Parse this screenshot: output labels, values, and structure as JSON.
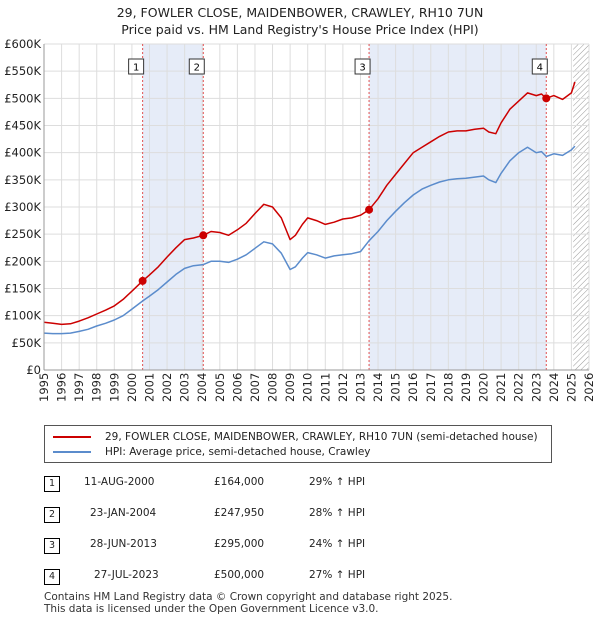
{
  "title": {
    "line1": "29, FOWLER CLOSE, MAIDENBOWER, CRAWLEY, RH10 7UN",
    "line2": "Price paid vs. HM Land Registry's House Price Index (HPI)"
  },
  "colors": {
    "property": "#cc0000",
    "hpi": "#5b8ccc",
    "band": "#e6ecf8",
    "marker_line": "#e05050",
    "grid": "#dddddd",
    "forecast_hatch": "#999999"
  },
  "chart_data": {
    "type": "line",
    "title": "Price paid vs. HM Land Registry's House Price Index (HPI)",
    "xlabel": "",
    "ylabel": "",
    "xlim": [
      1995,
      2026
    ],
    "ylim": [
      0,
      600000
    ],
    "grid": true,
    "x_ticks": [
      "1995",
      "1996",
      "1997",
      "1998",
      "1999",
      "2000",
      "2001",
      "2002",
      "2003",
      "2004",
      "2005",
      "2006",
      "2007",
      "2008",
      "2009",
      "2010",
      "2011",
      "2012",
      "2013",
      "2014",
      "2015",
      "2016",
      "2017",
      "2018",
      "2019",
      "2020",
      "2021",
      "2022",
      "2023",
      "2024",
      "2025",
      "2026"
    ],
    "y_ticks": [
      {
        "value": 0,
        "label": "£0"
      },
      {
        "value": 50000,
        "label": "£50K"
      },
      {
        "value": 100000,
        "label": "£100K"
      },
      {
        "value": 150000,
        "label": "£150K"
      },
      {
        "value": 200000,
        "label": "£200K"
      },
      {
        "value": 250000,
        "label": "£250K"
      },
      {
        "value": 300000,
        "label": "£300K"
      },
      {
        "value": 350000,
        "label": "£350K"
      },
      {
        "value": 400000,
        "label": "£400K"
      },
      {
        "value": 450000,
        "label": "£450K"
      },
      {
        "value": 500000,
        "label": "£500K"
      },
      {
        "value": 550000,
        "label": "£550K"
      },
      {
        "value": 600000,
        "label": "£600K"
      }
    ],
    "shaded_periods": [
      [
        2000.61,
        2004.06
      ],
      [
        2013.49,
        2023.57
      ]
    ],
    "forecast_from": 2025.1,
    "series": [
      {
        "name": "29, FOWLER CLOSE, MAIDENBOWER, CRAWLEY, RH10 7UN (semi-detached house)",
        "color": "#cc0000",
        "x": [
          1995.0,
          1995.5,
          1996.0,
          1996.5,
          1997.0,
          1997.5,
          1998.0,
          1998.5,
          1999.0,
          1999.5,
          2000.0,
          2000.61,
          2001.0,
          2001.5,
          2002.0,
          2002.5,
          2003.0,
          2003.5,
          2004.06,
          2004.5,
          2005.0,
          2005.5,
          2006.0,
          2006.5,
          2007.0,
          2007.5,
          2008.0,
          2008.5,
          2009.0,
          2009.3,
          2009.7,
          2010.0,
          2010.5,
          2011.0,
          2011.5,
          2012.0,
          2012.5,
          2013.0,
          2013.49,
          2014.0,
          2014.5,
          2015.0,
          2015.5,
          2016.0,
          2016.5,
          2017.0,
          2017.5,
          2018.0,
          2018.5,
          2019.0,
          2019.5,
          2020.0,
          2020.3,
          2020.7,
          2021.0,
          2021.5,
          2022.0,
          2022.5,
          2023.0,
          2023.3,
          2023.57,
          2024.0,
          2024.5,
          2025.0,
          2025.2
        ],
        "values": [
          88000,
          86000,
          84000,
          85000,
          90000,
          96000,
          103000,
          110000,
          118000,
          130000,
          145000,
          164000,
          175000,
          190000,
          208000,
          225000,
          240000,
          243000,
          247950,
          255000,
          253000,
          248000,
          258000,
          270000,
          288000,
          305000,
          300000,
          280000,
          240000,
          248000,
          268000,
          280000,
          275000,
          268000,
          272000,
          278000,
          280000,
          285000,
          295000,
          315000,
          340000,
          360000,
          380000,
          400000,
          410000,
          420000,
          430000,
          438000,
          440000,
          440000,
          443000,
          445000,
          438000,
          435000,
          455000,
          480000,
          495000,
          510000,
          505000,
          508000,
          500000,
          505000,
          498000,
          510000,
          530000
        ]
      },
      {
        "name": "HPI: Average price, semi-detached house, Crawley",
        "color": "#5b8ccc",
        "x": [
          1995.0,
          1995.5,
          1996.0,
          1996.5,
          1997.0,
          1997.5,
          1998.0,
          1998.5,
          1999.0,
          1999.5,
          2000.0,
          2000.61,
          2001.0,
          2001.5,
          2002.0,
          2002.5,
          2003.0,
          2003.5,
          2004.06,
          2004.5,
          2005.0,
          2005.5,
          2006.0,
          2006.5,
          2007.0,
          2007.5,
          2008.0,
          2008.5,
          2009.0,
          2009.3,
          2009.7,
          2010.0,
          2010.5,
          2011.0,
          2011.5,
          2012.0,
          2012.5,
          2013.0,
          2013.49,
          2014.0,
          2014.5,
          2015.0,
          2015.5,
          2016.0,
          2016.5,
          2017.0,
          2017.5,
          2018.0,
          2018.5,
          2019.0,
          2019.5,
          2020.0,
          2020.3,
          2020.7,
          2021.0,
          2021.5,
          2022.0,
          2022.5,
          2023.0,
          2023.3,
          2023.57,
          2024.0,
          2024.5,
          2025.0,
          2025.2
        ],
        "values": [
          68000,
          67000,
          67000,
          68000,
          71000,
          75000,
          81000,
          86000,
          92000,
          100000,
          112000,
          127000,
          136000,
          148000,
          162000,
          176000,
          187000,
          192000,
          194000,
          200000,
          200000,
          198000,
          204000,
          212000,
          224000,
          236000,
          232000,
          215000,
          185000,
          190000,
          206000,
          216000,
          212000,
          206000,
          210000,
          212000,
          214000,
          218000,
          238000,
          255000,
          275000,
          292000,
          308000,
          322000,
          333000,
          340000,
          346000,
          350000,
          352000,
          353000,
          355000,
          357000,
          350000,
          345000,
          362000,
          385000,
          400000,
          410000,
          400000,
          402000,
          393000,
          398000,
          395000,
          405000,
          412000
        ]
      }
    ],
    "sale_markers": [
      {
        "label": "1",
        "x": 2000.61,
        "value": 164000
      },
      {
        "label": "2",
        "x": 2004.06,
        "value": 247950
      },
      {
        "label": "3",
        "x": 2013.49,
        "value": 295000
      },
      {
        "label": "4",
        "x": 2023.57,
        "value": 500000
      }
    ]
  },
  "legend": {
    "property_label": "29, FOWLER CLOSE, MAIDENBOWER, CRAWLEY, RH10 7UN (semi-detached house)",
    "hpi_label": "HPI: Average price, semi-detached house, Crawley"
  },
  "sales": [
    {
      "num": "1",
      "date": "11-AUG-2000",
      "price": "£164,000",
      "hpi": "29% ↑ HPI"
    },
    {
      "num": "2",
      "date": "23-JAN-2004",
      "price": "£247,950",
      "hpi": "28% ↑ HPI"
    },
    {
      "num": "3",
      "date": "28-JUN-2013",
      "price": "£295,000",
      "hpi": "24% ↑ HPI"
    },
    {
      "num": "4",
      "date": "27-JUL-2023",
      "price": "£500,000",
      "hpi": "27% ↑ HPI"
    }
  ],
  "footer": {
    "line1": "Contains HM Land Registry data © Crown copyright and database right 2025.",
    "line2": "This data is licensed under the Open Government Licence v3.0."
  }
}
